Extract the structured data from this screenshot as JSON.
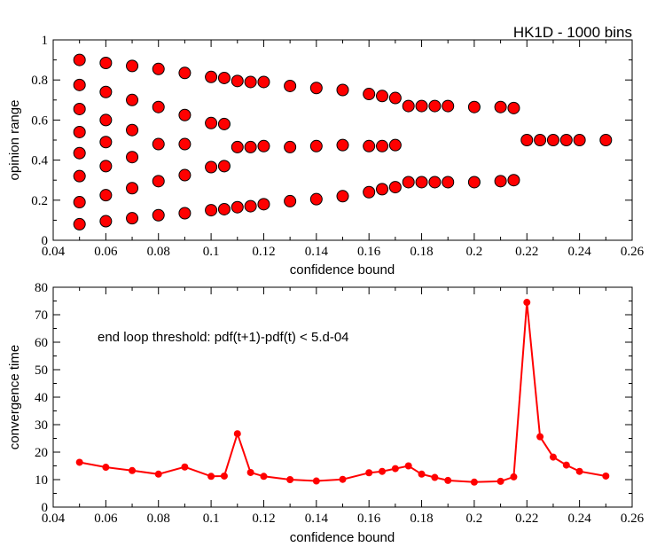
{
  "figure": {
    "title": "HK1D - 1000 bins"
  },
  "colors": {
    "marker": "#ff0000",
    "line": "#ff0000",
    "axis": "#000000"
  },
  "chart_data": [
    {
      "type": "scatter",
      "xlabel": "confidence bound",
      "ylabel": "opinion range",
      "xlim": [
        0.04,
        0.26
      ],
      "ylim": [
        0,
        1
      ],
      "xticks": [
        "0.04",
        "0.06",
        "0.08",
        "0.1",
        "0.12",
        "0.14",
        "0.16",
        "0.18",
        "0.2",
        "0.22",
        "0.24",
        "0.26"
      ],
      "yticks": [
        "0",
        "0.2",
        "0.4",
        "0.6",
        "0.8",
        "1"
      ],
      "grid": false,
      "points": [
        [
          0.05,
          0.9
        ],
        [
          0.05,
          0.775
        ],
        [
          0.05,
          0.655
        ],
        [
          0.05,
          0.54
        ],
        [
          0.05,
          0.435
        ],
        [
          0.05,
          0.32
        ],
        [
          0.05,
          0.19
        ],
        [
          0.05,
          0.08
        ],
        [
          0.06,
          0.885
        ],
        [
          0.06,
          0.74
        ],
        [
          0.06,
          0.6
        ],
        [
          0.06,
          0.49
        ],
        [
          0.06,
          0.37
        ],
        [
          0.06,
          0.225
        ],
        [
          0.06,
          0.095
        ],
        [
          0.07,
          0.87
        ],
        [
          0.07,
          0.7
        ],
        [
          0.07,
          0.55
        ],
        [
          0.07,
          0.415
        ],
        [
          0.07,
          0.26
        ],
        [
          0.07,
          0.11
        ],
        [
          0.08,
          0.855
        ],
        [
          0.08,
          0.665
        ],
        [
          0.08,
          0.48
        ],
        [
          0.08,
          0.295
        ],
        [
          0.08,
          0.125
        ],
        [
          0.09,
          0.835
        ],
        [
          0.09,
          0.625
        ],
        [
          0.09,
          0.48
        ],
        [
          0.09,
          0.325
        ],
        [
          0.09,
          0.135
        ],
        [
          0.1,
          0.815
        ],
        [
          0.1,
          0.585
        ],
        [
          0.1,
          0.365
        ],
        [
          0.1,
          0.15
        ],
        [
          0.105,
          0.81
        ],
        [
          0.105,
          0.58
        ],
        [
          0.105,
          0.37
        ],
        [
          0.105,
          0.155
        ],
        [
          0.11,
          0.795
        ],
        [
          0.11,
          0.465
        ],
        [
          0.11,
          0.165
        ],
        [
          0.115,
          0.79
        ],
        [
          0.115,
          0.465
        ],
        [
          0.115,
          0.17
        ],
        [
          0.12,
          0.79
        ],
        [
          0.12,
          0.47
        ],
        [
          0.12,
          0.18
        ],
        [
          0.13,
          0.77
        ],
        [
          0.13,
          0.465
        ],
        [
          0.13,
          0.195
        ],
        [
          0.14,
          0.76
        ],
        [
          0.14,
          0.47
        ],
        [
          0.14,
          0.205
        ],
        [
          0.15,
          0.75
        ],
        [
          0.15,
          0.475
        ],
        [
          0.15,
          0.22
        ],
        [
          0.16,
          0.73
        ],
        [
          0.16,
          0.47
        ],
        [
          0.16,
          0.24
        ],
        [
          0.165,
          0.72
        ],
        [
          0.165,
          0.47
        ],
        [
          0.165,
          0.255
        ],
        [
          0.17,
          0.71
        ],
        [
          0.17,
          0.475
        ],
        [
          0.17,
          0.265
        ],
        [
          0.175,
          0.67
        ],
        [
          0.175,
          0.29
        ],
        [
          0.18,
          0.67
        ],
        [
          0.18,
          0.29
        ],
        [
          0.185,
          0.67
        ],
        [
          0.185,
          0.29
        ],
        [
          0.19,
          0.67
        ],
        [
          0.19,
          0.29
        ],
        [
          0.2,
          0.665
        ],
        [
          0.2,
          0.29
        ],
        [
          0.21,
          0.665
        ],
        [
          0.21,
          0.295
        ],
        [
          0.215,
          0.66
        ],
        [
          0.215,
          0.3
        ],
        [
          0.22,
          0.5
        ],
        [
          0.225,
          0.5
        ],
        [
          0.23,
          0.5
        ],
        [
          0.235,
          0.5
        ],
        [
          0.24,
          0.5
        ],
        [
          0.25,
          0.5
        ]
      ]
    },
    {
      "type": "line",
      "xlabel": "confidence bound",
      "ylabel": "convergence time",
      "annotation": "end loop threshold:  pdf(t+1)-pdf(t) < 5.d-04",
      "xlim": [
        0.04,
        0.26
      ],
      "ylim": [
        0,
        80
      ],
      "xticks": [
        "0.04",
        "0.06",
        "0.08",
        "0.1",
        "0.12",
        "0.14",
        "0.16",
        "0.18",
        "0.2",
        "0.22",
        "0.24",
        "0.26"
      ],
      "yticks": [
        "0",
        "10",
        "20",
        "30",
        "40",
        "50",
        "60",
        "70",
        "80"
      ],
      "grid": false,
      "x": [
        0.05,
        0.06,
        0.07,
        0.08,
        0.09,
        0.1,
        0.105,
        0.11,
        0.115,
        0.12,
        0.13,
        0.14,
        0.15,
        0.16,
        0.165,
        0.17,
        0.175,
        0.18,
        0.185,
        0.19,
        0.2,
        0.21,
        0.215,
        0.22,
        0.225,
        0.23,
        0.235,
        0.24,
        0.25
      ],
      "y": [
        16.3,
        14.5,
        13.3,
        12.0,
        14.6,
        11.2,
        11.3,
        26.7,
        12.6,
        11.2,
        10.0,
        9.5,
        10.1,
        12.5,
        13.0,
        14.0,
        15.0,
        12.0,
        10.8,
        9.7,
        9.1,
        9.4,
        11.0,
        74.5,
        25.6,
        18.2,
        15.3,
        13.0,
        11.3
      ]
    }
  ]
}
